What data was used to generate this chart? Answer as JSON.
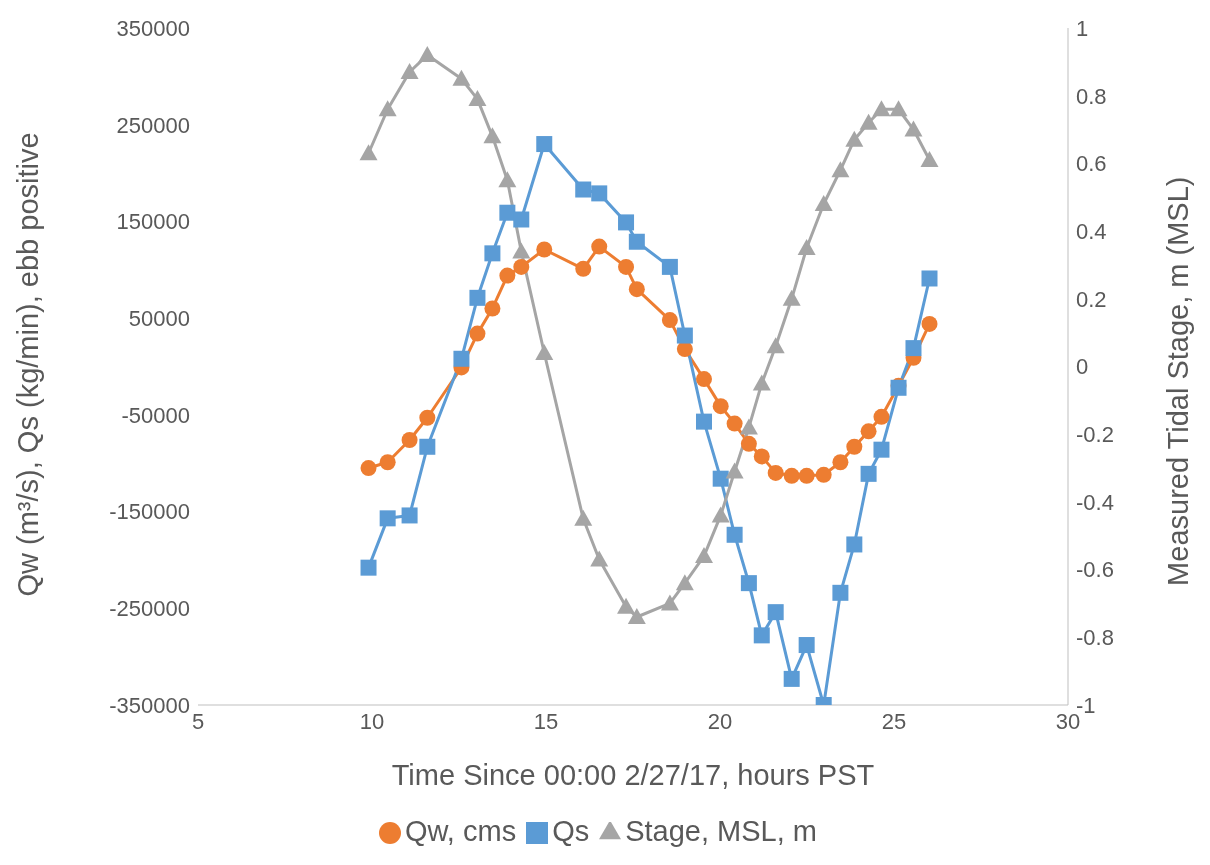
{
  "chart_data": {
    "type": "line",
    "xlabel": "Time Since 00:00 2/27/17, hours PST",
    "ylabel": "Qw (m³/s), Qs (kg/min), ebb positive",
    "y2label": "Measured Tidal Stage, m (MSL)",
    "x": [
      9.9,
      10.45,
      11.08,
      11.59,
      12.57,
      13.03,
      13.46,
      13.89,
      14.29,
      14.95,
      16.07,
      16.53,
      17.3,
      17.61,
      18.56,
      18.99,
      19.54,
      20.02,
      20.42,
      20.83,
      21.2,
      21.6,
      22.06,
      22.49,
      22.98,
      23.46,
      23.86,
      24.27,
      24.64,
      25.13,
      25.56,
      26.02
    ],
    "series": [
      {
        "name": "Qw, cms",
        "color": "#ed7d31",
        "marker": "circle",
        "values": [
          -105000,
          -99000,
          -76000,
          -53000,
          -1000,
          34000,
          60000,
          94000,
          103000,
          121000,
          101000,
          124000,
          103000,
          80000,
          48000,
          18000,
          -13000,
          -41000,
          -59000,
          -80000,
          -93000,
          -110000,
          -113000,
          -113000,
          -112000,
          -99000,
          -83000,
          -67000,
          -52000,
          -20000,
          9000,
          44000
        ]
      },
      {
        "name": "Qs",
        "color": "#5b9bd5",
        "marker": "square",
        "values": [
          -208000,
          -157000,
          -154000,
          -83000,
          8000,
          71000,
          117000,
          159000,
          152000,
          230000,
          183000,
          179000,
          149000,
          129000,
          103000,
          32000,
          -57000,
          -116000,
          -174000,
          -224000,
          -278000,
          -254000,
          -323000,
          -288000,
          -350000,
          -234000,
          -184000,
          -111000,
          -86000,
          -22000,
          19000,
          91000
        ]
      },
      {
        "name": "Stage, MSL, m",
        "color": "#a5a5a5",
        "marker": "triangle",
        "axis": "y2",
        "values": [
          0.63,
          0.76,
          0.87,
          0.92,
          0.85,
          0.79,
          0.68,
          0.55,
          0.34,
          0.04,
          -0.45,
          -0.57,
          -0.71,
          -0.74,
          -0.7,
          -0.64,
          -0.56,
          -0.44,
          -0.31,
          -0.18,
          -0.05,
          0.06,
          0.2,
          0.35,
          0.48,
          0.58,
          0.67,
          0.72,
          0.76,
          0.76,
          0.7,
          0.61
        ]
      }
    ],
    "xlim": [
      5,
      30
    ],
    "xticks": [
      5,
      10,
      15,
      20,
      25,
      30
    ],
    "ylim": [
      -350000,
      350000
    ],
    "yticks": [
      -350000,
      -250000,
      -150000,
      -50000,
      50000,
      150000,
      250000,
      350000
    ],
    "y2lim": [
      -1,
      1
    ],
    "y2ticks": [
      -1,
      -0.8,
      -0.6,
      -0.4,
      -0.2,
      0,
      0.2,
      0.4,
      0.6,
      0.8,
      1
    ],
    "grid": false,
    "legend": "bottom",
    "line_style": "solid"
  }
}
